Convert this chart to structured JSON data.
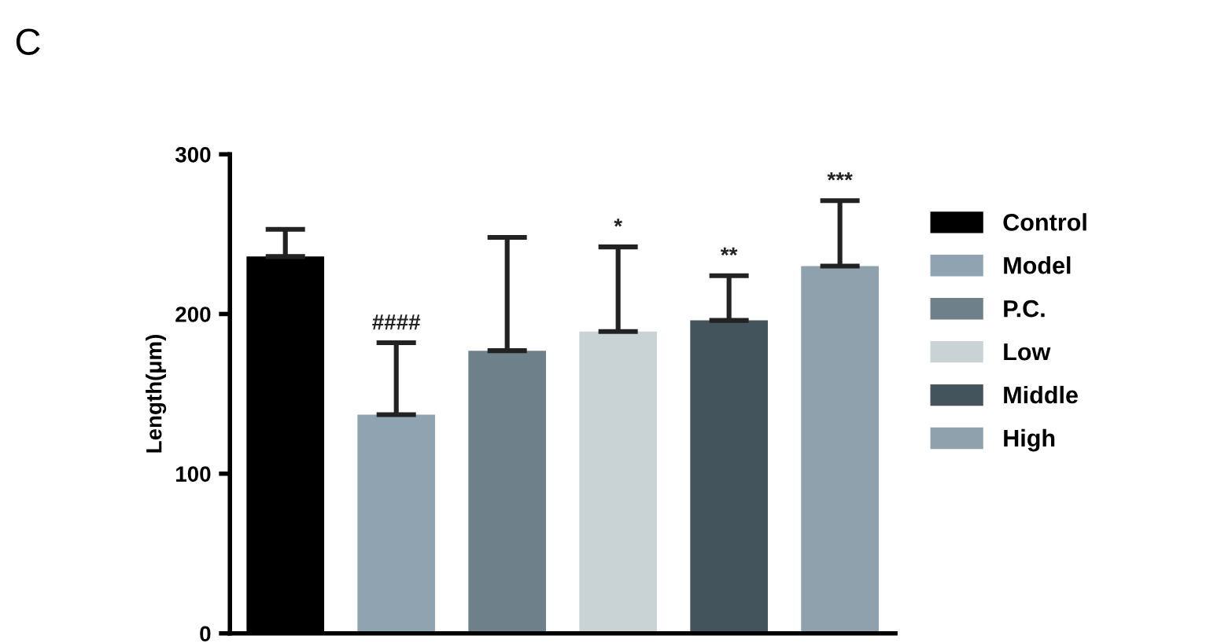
{
  "chart_data": {
    "type": "bar",
    "title": "C",
    "ylabel": "Length(μm)",
    "categories": [
      null,
      null,
      null,
      null,
      null,
      null
    ],
    "series": [
      {
        "name": "Control",
        "color": "#000000",
        "values": [
          236,
          null,
          null,
          null,
          null,
          null
        ],
        "errors": [
          [
            236,
            253
          ],
          null,
          null,
          null,
          null,
          null
        ]
      },
      {
        "name": "Model",
        "color": "#8fa3b1",
        "values": [
          null,
          137,
          null,
          null,
          null,
          null
        ],
        "errors": [
          null,
          [
            137,
            182
          ],
          null,
          null,
          null,
          null
        ]
      },
      {
        "name": "P.C.",
        "color": "#6e8089",
        "values": [
          null,
          null,
          177,
          null,
          null,
          null
        ],
        "errors": [
          null,
          null,
          [
            177,
            248
          ],
          null,
          null,
          null
        ]
      },
      {
        "name": "Low",
        "color": "#c9d3d6",
        "values": [
          null,
          null,
          null,
          189,
          null,
          null
        ],
        "errors": [
          null,
          null,
          null,
          [
            189,
            242
          ],
          null,
          null
        ]
      },
      {
        "name": "Middle",
        "color": "#44545c",
        "values": [
          null,
          null,
          null,
          null,
          196,
          null
        ],
        "errors": [
          null,
          null,
          null,
          null,
          [
            196,
            224
          ],
          null
        ]
      },
      {
        "name": "High",
        "color": "#8fa1ad",
        "values": [
          null,
          null,
          null,
          null,
          null,
          230
        ],
        "errors": [
          null,
          null,
          null,
          null,
          null,
          [
            230,
            271
          ]
        ]
      }
    ],
    "annotations": [
      {
        "text": "####",
        "y": 182
      },
      {
        "text": "*",
        "y": 242
      },
      {
        "text": "**",
        "y": 224
      },
      {
        "text": "***",
        "y": 271
      }
    ],
    "ylim": [
      0,
      300
    ],
    "yticks": [
      0,
      100,
      200,
      300
    ],
    "tick_labels": "y",
    "grid": false,
    "legend": "right"
  }
}
